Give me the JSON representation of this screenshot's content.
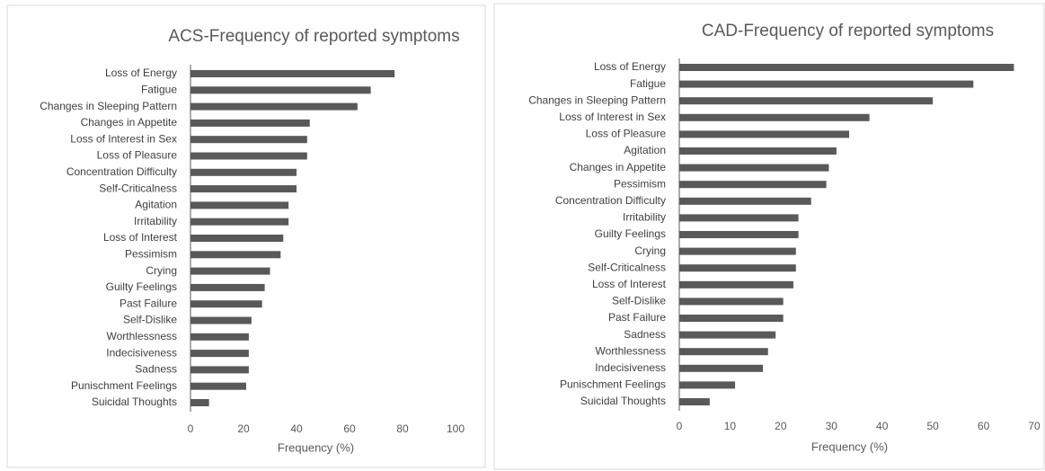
{
  "chart_data": [
    {
      "type": "bar",
      "orientation": "horizontal",
      "title": "ACS-Frequency of reported symptoms",
      "x_label": "Frequency (%)",
      "color": "#595959",
      "categories": [
        "Loss of Energy",
        "Fatigue",
        "Changes in Sleeping Pattern",
        "Changes in Appetite",
        "Loss of Interest in Sex",
        "Loss of Pleasure",
        "Concentration Difficulty",
        "Self-Criticalness",
        "Agitation",
        "Irritability",
        "Loss of Interest",
        "Pessimism",
        "Crying",
        "Guilty Feelings",
        "Past Failure",
        "Self-Dislike",
        "Worthlessness",
        "Indecisiveness",
        "Sadness",
        "Punischment Feelings",
        "Suicidal Thoughts"
      ],
      "values": [
        77,
        68,
        63,
        45,
        44,
        44,
        40,
        40,
        37,
        37,
        35,
        34,
        30,
        28,
        27,
        23,
        22,
        22,
        22,
        21,
        7
      ],
      "xlim": [
        0,
        100
      ],
      "xticks": [
        0,
        20,
        40,
        60,
        80,
        100
      ]
    },
    {
      "type": "bar",
      "orientation": "horizontal",
      "title": "CAD-Frequency of reported symptoms",
      "x_label": "Frequency (%)",
      "color": "#595959",
      "categories": [
        "Loss of Energy",
        "Fatigue",
        "Changes in Sleeping Pattern",
        "Loss of Interest in Sex",
        "Loss of Pleasure",
        "Agitation",
        "Changes in Appetite",
        "Pessimism",
        "Concentration Difficulty",
        "Irritability",
        "Guilty Feelings",
        "Crying",
        "Self-Criticalness",
        "Loss of Interest",
        "Self-Dislike",
        "Past Failure",
        "Sadness",
        "Worthlessness",
        "Indecisiveness",
        "Punischment Feelings",
        "Suicidal Thoughts"
      ],
      "values": [
        66,
        58,
        50,
        37.5,
        33.5,
        31,
        29.5,
        29,
        26,
        23.5,
        23.5,
        23,
        23,
        22.5,
        20.5,
        20.5,
        19,
        17.5,
        16.5,
        11,
        6
      ],
      "xlim": [
        0,
        70
      ],
      "xticks": [
        0,
        10,
        20,
        30,
        40,
        50,
        60,
        70
      ]
    }
  ]
}
